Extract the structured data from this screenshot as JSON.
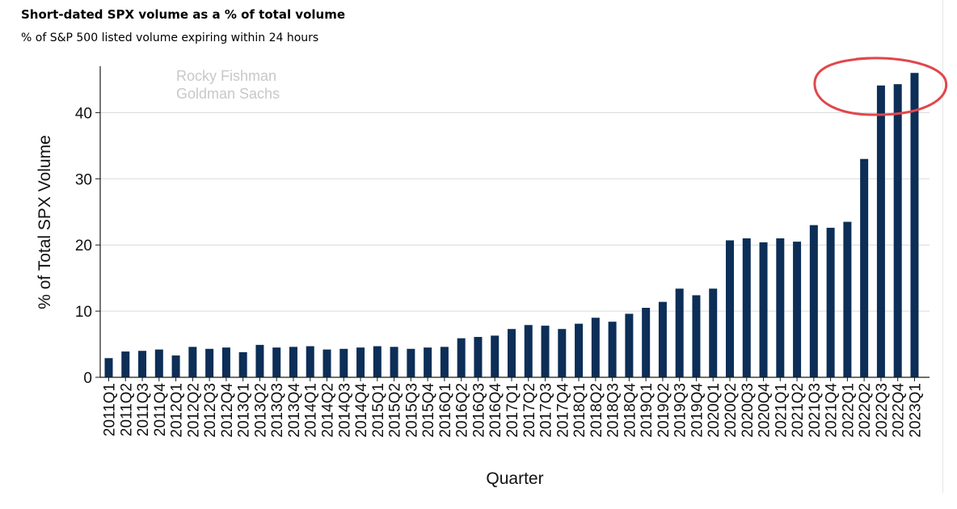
{
  "title": "Short-dated SPX volume as a % of total volume",
  "subtitle": "% of S&P 500 listed volume expiring within 24 hours",
  "watermark": [
    "Rocky Fishman",
    "Goldman Sachs"
  ],
  "colors": {
    "bar": "#0c2e57",
    "grid": "#d9d9d9",
    "axis": "#1a1a1a",
    "annotation": "#e0474c",
    "watermark": "#c8c8c8"
  },
  "chart_data": {
    "type": "bar",
    "xlabel": "Quarter",
    "ylabel": "% of Total SPX Volume",
    "ylim": [
      0,
      47
    ],
    "yticks": [
      0,
      10,
      20,
      30,
      40
    ],
    "grid": true,
    "categories": [
      "2011Q1",
      "2011Q2",
      "2011Q3",
      "2011Q4",
      "2012Q1",
      "2012Q2",
      "2012Q3",
      "2012Q4",
      "2013Q1",
      "2013Q2",
      "2013Q3",
      "2013Q4",
      "2014Q1",
      "2014Q2",
      "2014Q3",
      "2014Q4",
      "2015Q1",
      "2015Q2",
      "2015Q3",
      "2015Q4",
      "2016Q1",
      "2016Q2",
      "2016Q3",
      "2016Q4",
      "2017Q1",
      "2017Q2",
      "2017Q3",
      "2017Q4",
      "2018Q1",
      "2018Q2",
      "2018Q3",
      "2018Q4",
      "2019Q1",
      "2019Q2",
      "2019Q3",
      "2019Q4",
      "2020Q1",
      "2020Q2",
      "2020Q3",
      "2020Q4",
      "2021Q1",
      "2021Q2",
      "2021Q3",
      "2021Q4",
      "2022Q1",
      "2022Q2",
      "2022Q3",
      "2022Q4",
      "2023Q1"
    ],
    "values": [
      2.9,
      3.9,
      4.0,
      4.2,
      3.3,
      4.6,
      4.3,
      4.5,
      3.8,
      4.9,
      4.5,
      4.6,
      4.7,
      4.2,
      4.3,
      4.5,
      4.7,
      4.6,
      4.3,
      4.5,
      4.6,
      5.9,
      6.1,
      6.3,
      7.3,
      7.9,
      7.8,
      7.3,
      8.1,
      9.0,
      8.4,
      9.6,
      10.5,
      11.4,
      13.4,
      12.4,
      13.4,
      20.7,
      21.0,
      20.4,
      21.0,
      20.5,
      23.0,
      22.6,
      23.5,
      33.0,
      44.1,
      44.3,
      46.0
    ]
  }
}
